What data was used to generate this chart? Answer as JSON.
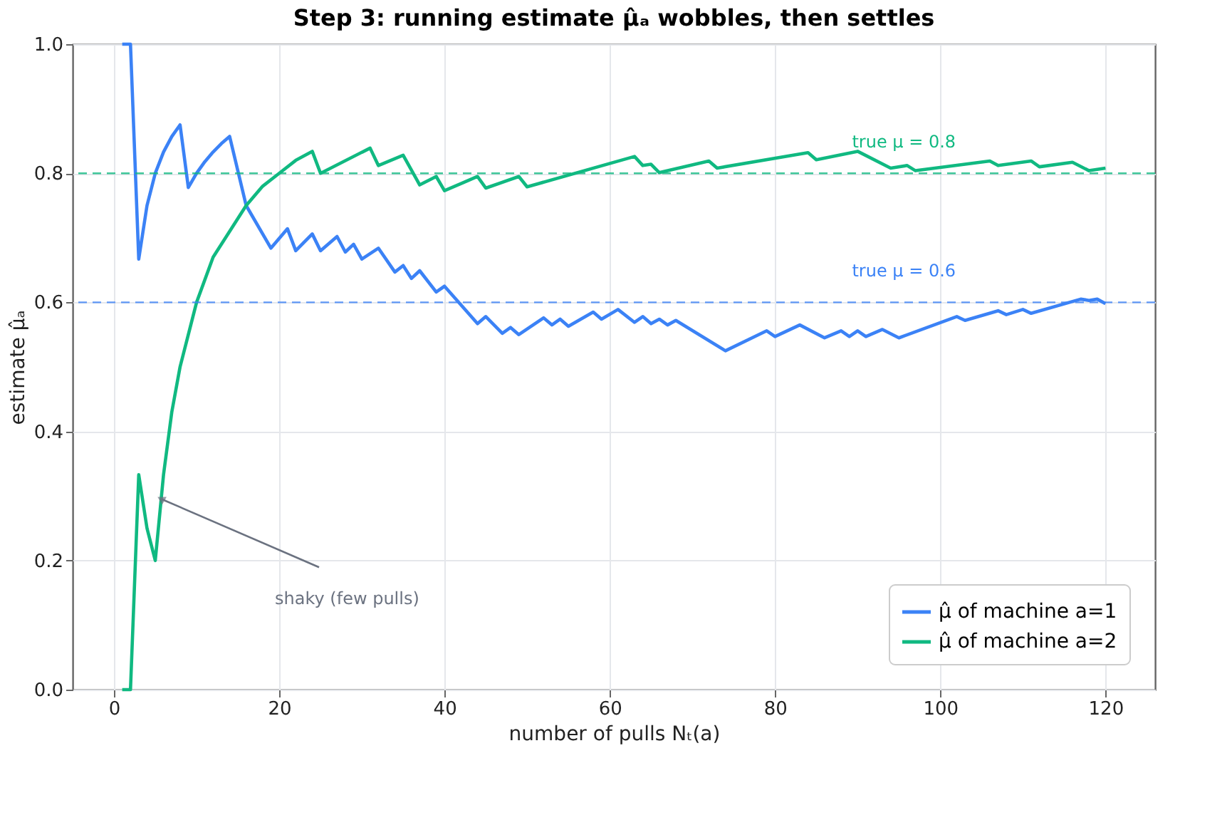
{
  "chart_data": {
    "type": "line",
    "title": "Step 3: running estimate μ̂ₐ wobbles, then settles",
    "xlabel": "number of pulls  Nₜ(a)",
    "ylabel": "estimate μ̂ₐ",
    "xlim": [
      -5,
      126
    ],
    "xticks": [
      0,
      20,
      40,
      60,
      80,
      100,
      120
    ],
    "ylim": [
      0,
      1
    ],
    "yticks": [
      {
        "value": 0,
        "label": "0.0"
      },
      0.2,
      0.4,
      0.6,
      0.8,
      {
        "value": 1,
        "label": "1.0"
      }
    ],
    "grid": true,
    "legend": "bottom right",
    "line_style": "solid",
    "marker": "none",
    "series": [
      {
        "name": "μ̂ of machine a=1",
        "color": "#3b82f6",
        "x": [
          1,
          2,
          3,
          4,
          5,
          6,
          7,
          8,
          9,
          10,
          11,
          12,
          13,
          14,
          16,
          19,
          21,
          22,
          24,
          25,
          27,
          28,
          29,
          30,
          32,
          34,
          35,
          36,
          37,
          39,
          40,
          44,
          45,
          47,
          48,
          49,
          52,
          53,
          54,
          55,
          58,
          59,
          61,
          63,
          64,
          65,
          66,
          67,
          68,
          74,
          79,
          80,
          83,
          86,
          88,
          89,
          90,
          91,
          93,
          95,
          102,
          103,
          107,
          108,
          110,
          111,
          117,
          118,
          119,
          120
        ],
        "values": [
          1.0,
          1.0,
          0.667,
          0.75,
          0.8,
          0.833,
          0.857,
          0.875,
          0.778,
          0.8,
          0.818,
          0.833,
          0.846,
          0.857,
          0.75,
          0.684,
          0.714,
          0.68,
          0.706,
          0.68,
          0.702,
          0.678,
          0.69,
          0.667,
          0.684,
          0.647,
          0.657,
          0.637,
          0.649,
          0.616,
          0.625,
          0.567,
          0.578,
          0.552,
          0.561,
          0.55,
          0.576,
          0.565,
          0.574,
          0.563,
          0.585,
          0.574,
          0.589,
          0.569,
          0.578,
          0.567,
          0.574,
          0.565,
          0.572,
          0.525,
          0.556,
          0.547,
          0.565,
          0.545,
          0.556,
          0.547,
          0.556,
          0.547,
          0.558,
          0.545,
          0.578,
          0.572,
          0.587,
          0.581,
          0.589,
          0.583,
          0.605,
          0.603,
          0.605,
          0.598
        ]
      },
      {
        "name": "μ̂ of machine a=2",
        "color": "#10b981",
        "x": [
          1,
          2,
          3,
          4,
          5,
          6,
          7,
          8,
          10,
          12,
          14,
          16,
          18,
          20,
          22,
          24,
          25,
          31,
          32,
          35,
          37,
          39,
          40,
          44,
          45,
          49,
          50,
          63,
          64,
          65,
          66,
          72,
          73,
          84,
          85,
          90,
          94,
          96,
          97,
          106,
          107,
          111,
          112,
          116,
          118,
          120
        ],
        "values": [
          0.0,
          0.0,
          0.333,
          0.25,
          0.2,
          0.333,
          0.43,
          0.5,
          0.6,
          0.67,
          0.71,
          0.75,
          0.78,
          0.8,
          0.82,
          0.834,
          0.8,
          0.839,
          0.812,
          0.828,
          0.782,
          0.795,
          0.773,
          0.795,
          0.777,
          0.795,
          0.779,
          0.826,
          0.812,
          0.814,
          0.801,
          0.819,
          0.808,
          0.832,
          0.821,
          0.834,
          0.808,
          0.812,
          0.804,
          0.819,
          0.812,
          0.819,
          0.81,
          0.817,
          0.804,
          0.808
        ]
      }
    ],
    "ref_lines": [
      {
        "axis": "y",
        "value": 0.8,
        "label": "true μ = 0.8",
        "color": "#10b981",
        "line_style": "dashed"
      },
      {
        "axis": "y",
        "value": 0.6,
        "label": "true μ = 0.6",
        "color": "#3b82f6",
        "line_style": "dashed"
      }
    ],
    "annotations": [
      {
        "text": "shaky (few pulls)",
        "x": 5,
        "y": 0.3
      }
    ]
  }
}
